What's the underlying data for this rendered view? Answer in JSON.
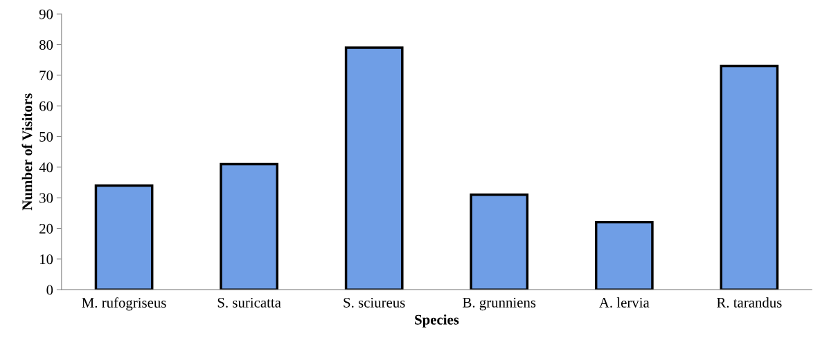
{
  "chart_data": {
    "type": "bar",
    "xlabel": "Species",
    "ylabel": "Number of Visitors",
    "categories": [
      "M. rufogriseus",
      "S. suricatta",
      "S. sciureus",
      "B. grunniens",
      "A. lervia",
      "R. tarandus"
    ],
    "values": [
      34,
      41,
      79,
      31,
      22,
      73
    ],
    "color": "#6f9ee6",
    "ylim": [
      0,
      90
    ],
    "yticks": [
      0,
      10,
      20,
      30,
      40,
      50,
      60,
      70,
      80,
      90
    ],
    "grid": false
  }
}
